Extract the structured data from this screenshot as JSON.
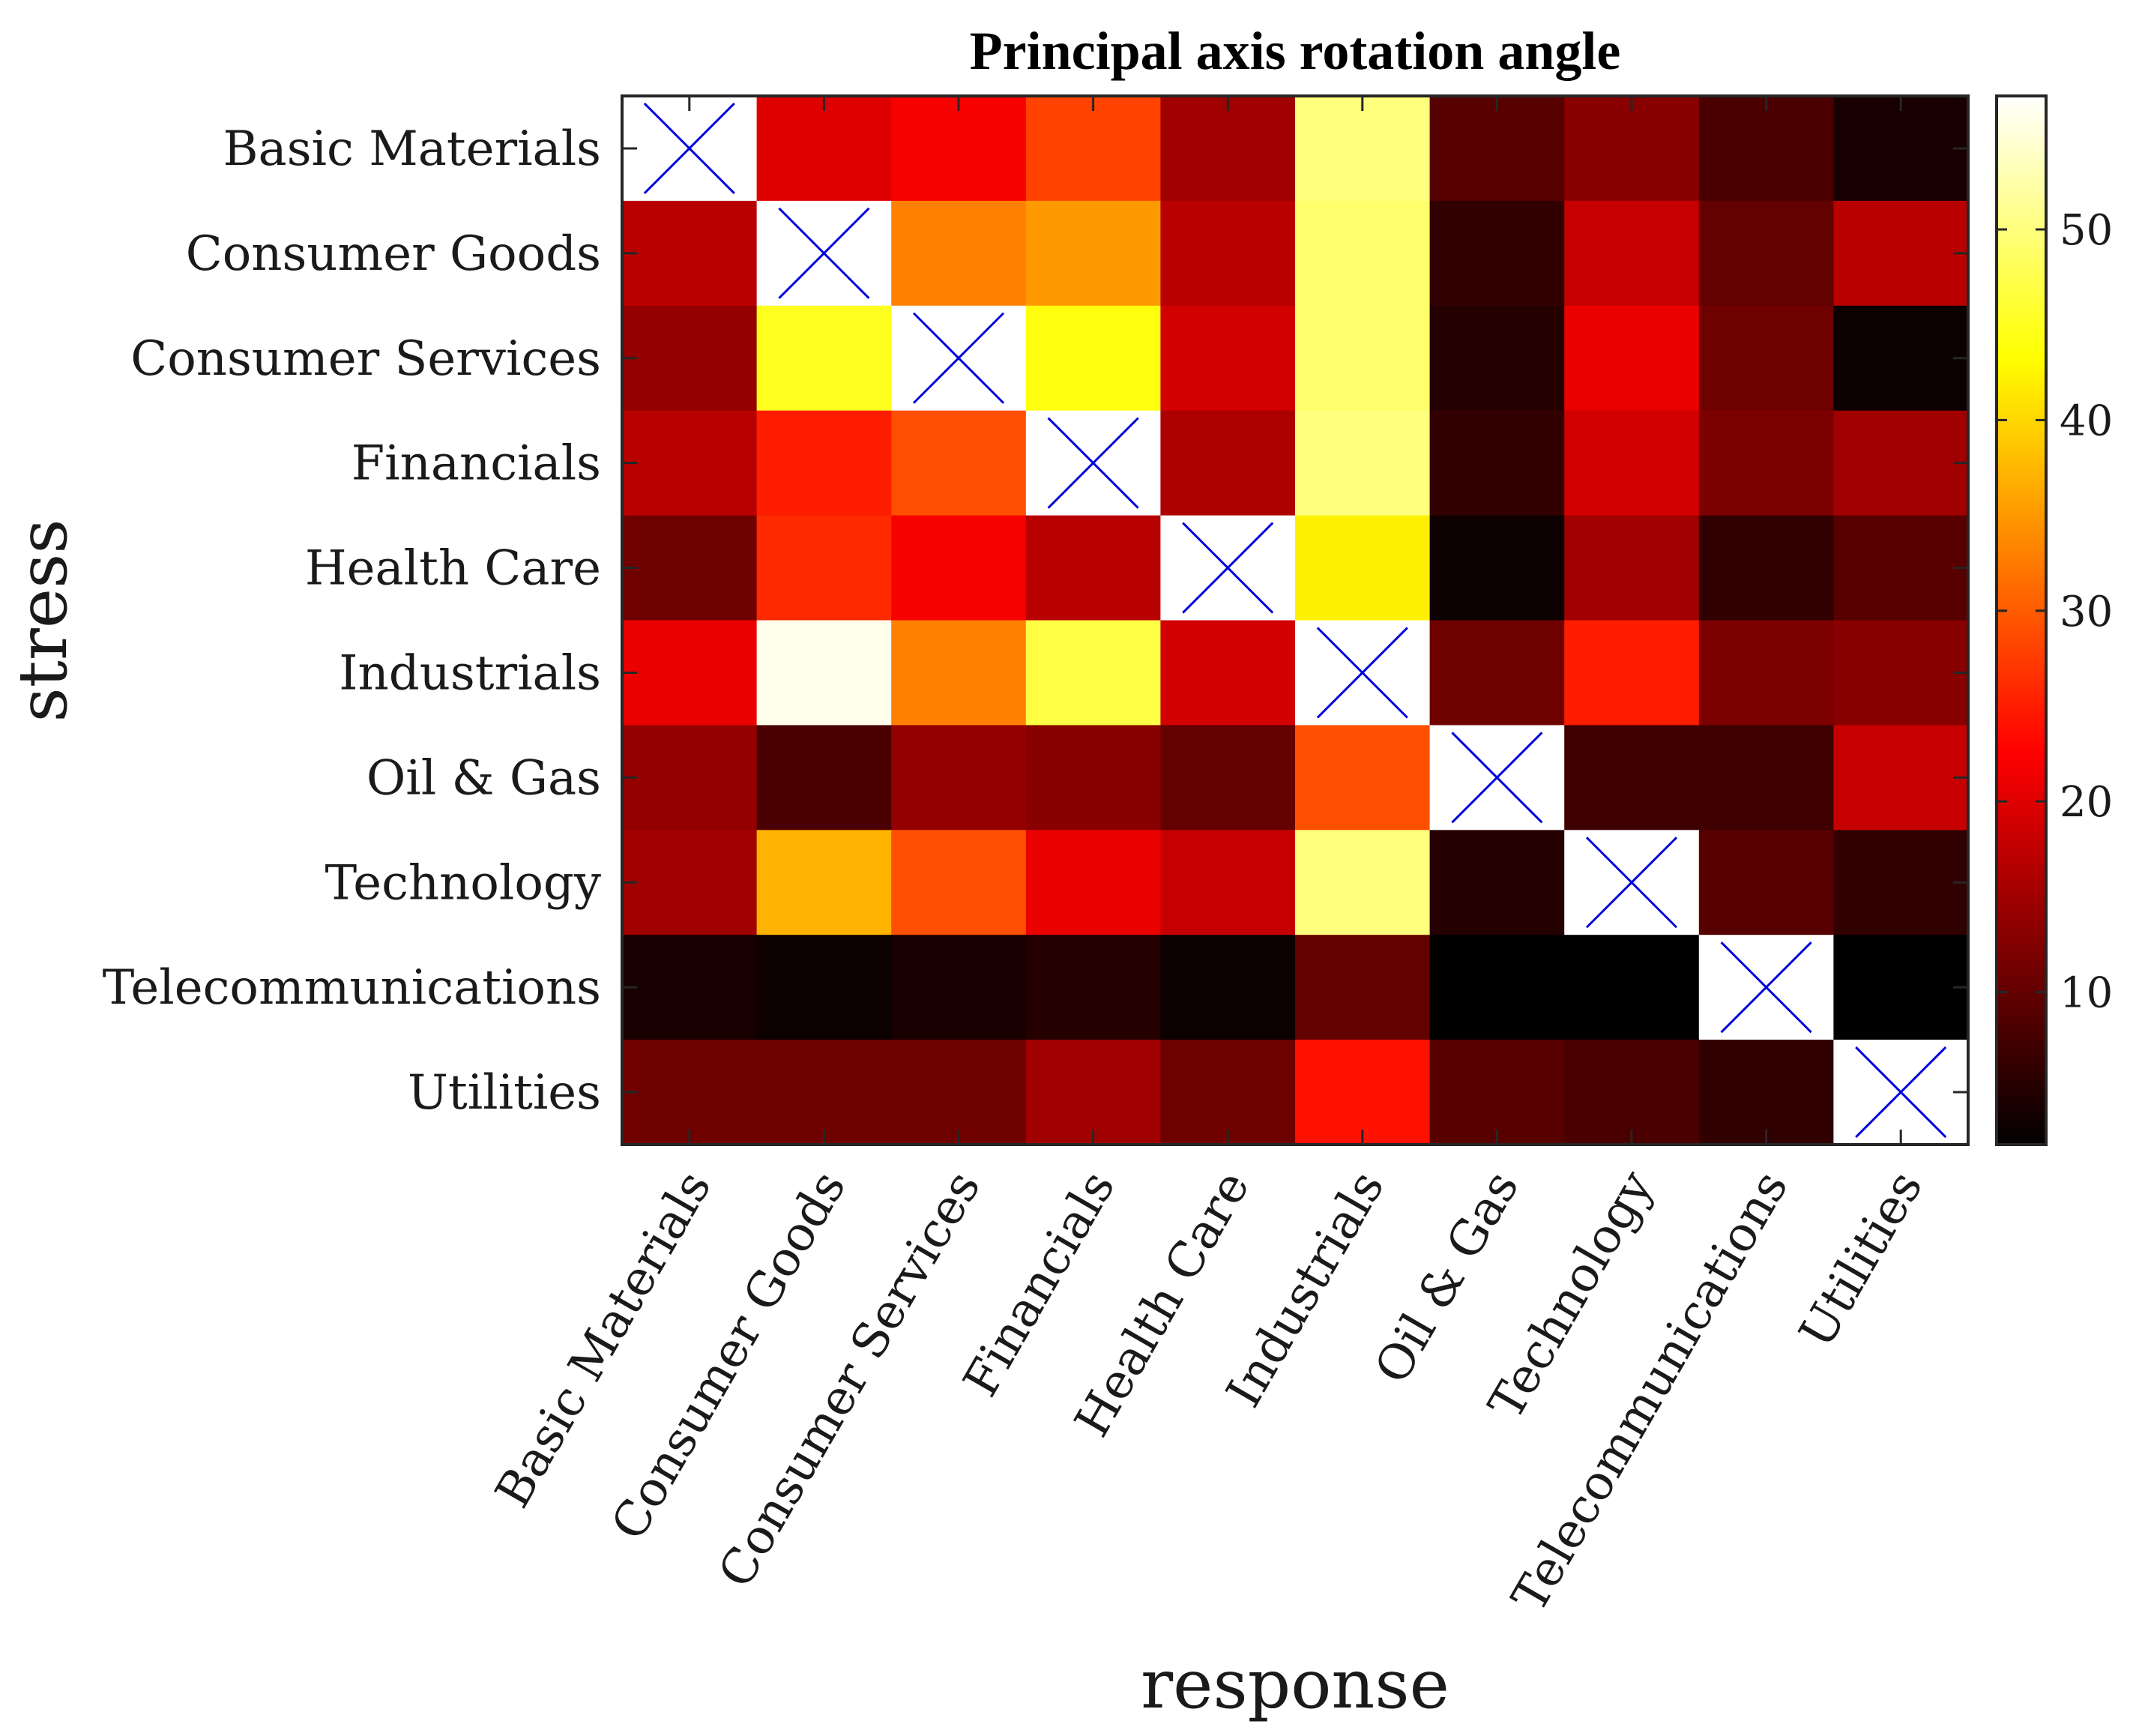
{
  "chart_data": {
    "type": "heatmap",
    "title": "Principal axis rotation angle",
    "xlabel": "response",
    "ylabel": "stress",
    "colormap": "hot",
    "x_categories": [
      "Basic Materials",
      "Consumer Goods",
      "Consumer Services",
      "Financials",
      "Health Care",
      "Industrials",
      "Oil & Gas",
      "Technology",
      "Telecommunications",
      "Utilities"
    ],
    "y_categories": [
      "Basic Materials",
      "Consumer Goods",
      "Consumer Services",
      "Financials",
      "Health Care",
      "Industrials",
      "Oil & Gas",
      "Technology",
      "Telecommunications",
      "Utilities"
    ],
    "values": [
      [
        null,
        20,
        22,
        28,
        15,
        50,
        9,
        13,
        8,
        4
      ],
      [
        17,
        null,
        33,
        35,
        17,
        49,
        6,
        18,
        10,
        17
      ],
      [
        14,
        45,
        null,
        44,
        19,
        49,
        5,
        21,
        11,
        3
      ],
      [
        17,
        25,
        29,
        null,
        16,
        50,
        6,
        19,
        12,
        15
      ],
      [
        11,
        26,
        22,
        17,
        null,
        42,
        3,
        15,
        6,
        9
      ],
      [
        21,
        56,
        33,
        47,
        19,
        null,
        11,
        25,
        12,
        13
      ],
      [
        14,
        8,
        14,
        13,
        10,
        29,
        null,
        7,
        7,
        18
      ],
      [
        15,
        37,
        29,
        21,
        18,
        50,
        5,
        null,
        9,
        6
      ],
      [
        4,
        3,
        4,
        5,
        3,
        10,
        1,
        2,
        null,
        2
      ],
      [
        11,
        11,
        11,
        15,
        11,
        24,
        9,
        8,
        6,
        null
      ]
    ],
    "diagonal_marker": "X",
    "clim": [
      2,
      57
    ],
    "colorbar_ticks": [
      10,
      20,
      30,
      40,
      50
    ],
    "colorbar_tick_labels": [
      "10",
      "20",
      "30",
      "40",
      "50"
    ],
    "marker_color": "#0000dd"
  }
}
